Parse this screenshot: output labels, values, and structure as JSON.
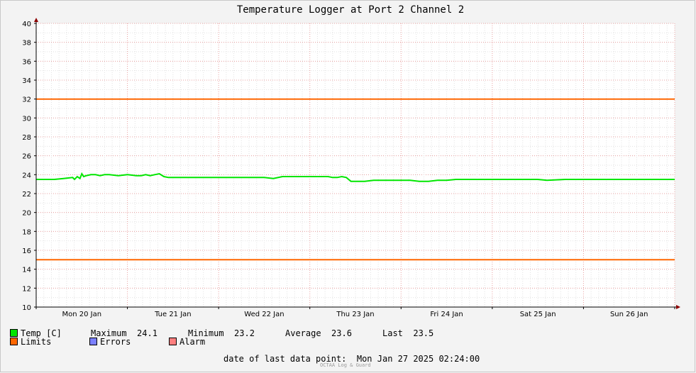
{
  "chart_data": {
    "type": "line",
    "title": "Temperature Logger at Port 2 Channel 2",
    "ylim": [
      10,
      40
    ],
    "yticks": [
      10,
      12,
      14,
      16,
      18,
      20,
      22,
      24,
      26,
      28,
      30,
      32,
      34,
      36,
      38,
      40
    ],
    "xlim": [
      0,
      7
    ],
    "x_tick_labels": [
      {
        "x": 0.5,
        "label": "Mon 20 Jan"
      },
      {
        "x": 1.5,
        "label": "Tue 21 Jan"
      },
      {
        "x": 2.5,
        "label": "Wed 22 Jan"
      },
      {
        "x": 3.5,
        "label": "Thu 23 Jan"
      },
      {
        "x": 4.5,
        "label": "Fri 24 Jan"
      },
      {
        "x": 5.5,
        "label": "Sat 25 Jan"
      },
      {
        "x": 6.5,
        "label": "Sun 26 Jan"
      }
    ],
    "grid": true,
    "series": [
      {
        "name": "Temp [C]",
        "color": "#00e600",
        "x": [
          0,
          0.1,
          0.2,
          0.3,
          0.4,
          0.42,
          0.45,
          0.48,
          0.5,
          0.52,
          0.55,
          0.6,
          0.65,
          0.7,
          0.75,
          0.8,
          0.9,
          1.0,
          1.1,
          1.15,
          1.2,
          1.25,
          1.3,
          1.35,
          1.4,
          1.45,
          1.5,
          1.6,
          1.7,
          1.8,
          1.9,
          2.0,
          2.1,
          2.2,
          2.3,
          2.4,
          2.5,
          2.6,
          2.7,
          2.8,
          2.9,
          3.0,
          3.1,
          3.2,
          3.25,
          3.3,
          3.35,
          3.4,
          3.45,
          3.5,
          3.6,
          3.7,
          3.8,
          3.9,
          4.0,
          4.1,
          4.2,
          4.3,
          4.4,
          4.5,
          4.6,
          4.7,
          4.8,
          5.0,
          5.2,
          5.4,
          5.5,
          5.6,
          5.8,
          6.0,
          6.2,
          6.4,
          6.6,
          6.8,
          7.0
        ],
        "y": [
          23.5,
          23.5,
          23.5,
          23.6,
          23.7,
          23.5,
          23.8,
          23.6,
          24.1,
          23.8,
          23.9,
          24.0,
          24.0,
          23.9,
          24.0,
          24.0,
          23.9,
          24.0,
          23.9,
          23.9,
          24.0,
          23.9,
          24.0,
          24.1,
          23.8,
          23.7,
          23.7,
          23.7,
          23.7,
          23.7,
          23.7,
          23.7,
          23.7,
          23.7,
          23.7,
          23.7,
          23.7,
          23.6,
          23.8,
          23.8,
          23.8,
          23.8,
          23.8,
          23.8,
          23.7,
          23.7,
          23.8,
          23.7,
          23.3,
          23.3,
          23.3,
          23.4,
          23.4,
          23.4,
          23.4,
          23.4,
          23.3,
          23.3,
          23.4,
          23.4,
          23.5,
          23.5,
          23.5,
          23.5,
          23.5,
          23.5,
          23.5,
          23.4,
          23.5,
          23.5,
          23.5,
          23.5,
          23.5,
          23.5,
          23.5
        ]
      },
      {
        "name": "Limits",
        "color": "#ff6600",
        "x": [
          0,
          7
        ],
        "y": [
          32,
          32
        ]
      },
      {
        "name": "Limits",
        "color": "#ff6600",
        "x": [
          0,
          7
        ],
        "y": [
          15,
          15
        ]
      }
    ]
  },
  "legend": {
    "temp_label": "Temp [C]",
    "maximum_label": "Maximum",
    "maximum_value": "24.1",
    "minimum_label": "Minimum",
    "minimum_value": "23.2",
    "average_label": "Average",
    "average_value": "23.6",
    "last_label": "Last",
    "last_value": "23.5",
    "limits_label": "Limits",
    "errors_label": "Errors",
    "alarm_label": "Alarm",
    "colors": {
      "temp": "#00e600",
      "limits": "#ff6600",
      "errors": "#7b80ff",
      "alarm": "#ff7f7f"
    }
  },
  "footer": {
    "date_label": "date of last data point:",
    "date_value": "Mon Jan 27 2025 02:24:00",
    "watermark": "OCTAA Log & Guard"
  }
}
